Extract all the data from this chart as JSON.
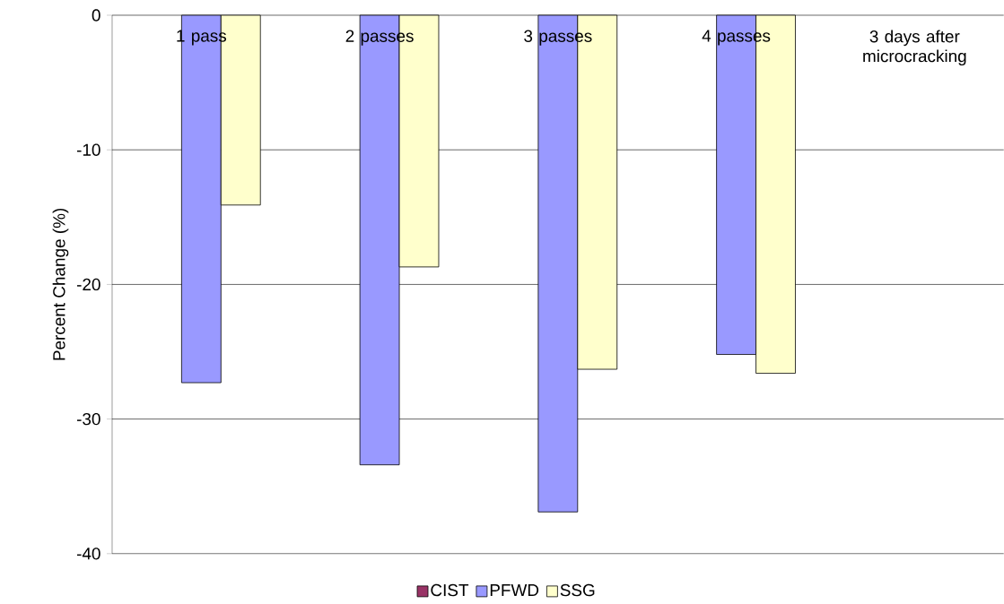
{
  "chart_data": {
    "type": "bar",
    "ylabel": "Percent Change (%)",
    "categories": [
      "1 pass",
      "2 passes",
      "3 passes",
      "4 passes",
      "3 days after microcracking"
    ],
    "series": [
      {
        "name": "CIST",
        "color": "#993366",
        "values": [
          null,
          null,
          null,
          null,
          null
        ]
      },
      {
        "name": "PFWD",
        "color": "#9999ff",
        "values": [
          -27.3,
          -33.4,
          -36.9,
          -25.2,
          null
        ]
      },
      {
        "name": "SSG",
        "color": "#ffffcc",
        "values": [
          -14.1,
          -18.7,
          -26.3,
          -26.6,
          null
        ]
      }
    ],
    "ylim": [
      -40,
      0
    ],
    "yticks": [
      0,
      -10,
      -20,
      -30,
      -40
    ],
    "grid": "y",
    "legend": "bottom"
  }
}
